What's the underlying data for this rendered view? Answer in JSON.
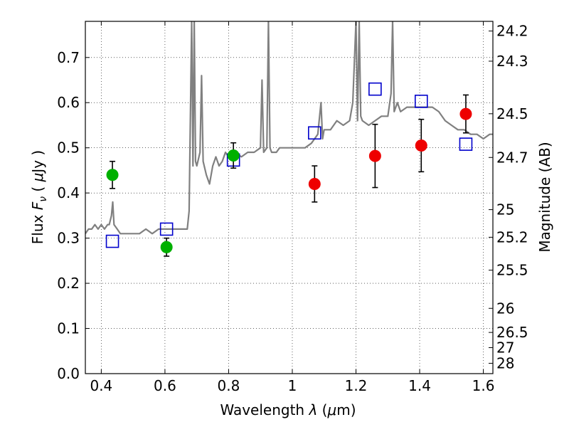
{
  "chart_data": {
    "type": "scatter",
    "xlabel": "Wavelength  λ (μm)",
    "ylabel": "Flux  F_ν  ( μJy )",
    "ylabel_parts": {
      "lead": "Flux  ",
      "var": "F",
      "sub": "ν",
      "mid": "  ( ",
      "unit": "μ",
      "unit_rest": "Jy )"
    },
    "xlabel_parts": {
      "lead": "Wavelength  ",
      "var": "λ",
      "mid": " (",
      "unit": "μ",
      "unit_rest": "m)"
    },
    "y2label": "Magnitude (AB)",
    "xlim": [
      0.35,
      1.63
    ],
    "ylim": [
      0.0,
      0.78
    ],
    "grid": true,
    "x_ticks": [
      {
        "value": 0.4,
        "label": "0.4"
      },
      {
        "value": 0.6,
        "label": "0.6"
      },
      {
        "value": 0.8,
        "label": "0.8"
      },
      {
        "value": 1.0,
        "label": "1"
      },
      {
        "value": 1.2,
        "label": "1.2"
      },
      {
        "value": 1.4,
        "label": "1.4"
      },
      {
        "value": 1.6,
        "label": "1.6"
      }
    ],
    "y_ticks": [
      {
        "value": 0.0,
        "label": "0.0"
      },
      {
        "value": 0.1,
        "label": "0.1"
      },
      {
        "value": 0.2,
        "label": "0.2"
      },
      {
        "value": 0.3,
        "label": "0.3"
      },
      {
        "value": 0.4,
        "label": "0.4"
      },
      {
        "value": 0.5,
        "label": "0.5"
      },
      {
        "value": 0.6,
        "label": "0.6"
      },
      {
        "value": 0.7,
        "label": "0.7"
      }
    ],
    "y2_ticks": [
      {
        "mag": 24.2,
        "label": "24.2"
      },
      {
        "mag": 24.3,
        "label": "24.3"
      },
      {
        "mag": 24.5,
        "label": "24.5"
      },
      {
        "mag": 24.7,
        "label": "24.7"
      },
      {
        "mag": 25.0,
        "label": "25"
      },
      {
        "mag": 25.2,
        "label": "25.2"
      },
      {
        "mag": 25.5,
        "label": "25.5"
      },
      {
        "mag": 26.0,
        "label": "26"
      },
      {
        "mag": 26.5,
        "label": "26.5"
      },
      {
        "mag": 27.0,
        "label": "27"
      },
      {
        "mag": 28.0,
        "label": "28"
      }
    ],
    "series": [
      {
        "kind": "spectrum",
        "color": "#808080",
        "x": [
          0.35,
          0.36,
          0.37,
          0.38,
          0.39,
          0.4,
          0.41,
          0.42,
          0.425,
          0.432,
          0.436,
          0.44,
          0.45,
          0.46,
          0.48,
          0.5,
          0.52,
          0.54,
          0.56,
          0.58,
          0.6,
          0.62,
          0.64,
          0.66,
          0.67,
          0.676,
          0.684,
          0.688,
          0.692,
          0.696,
          0.7,
          0.71,
          0.715,
          0.72,
          0.73,
          0.74,
          0.75,
          0.76,
          0.77,
          0.78,
          0.79,
          0.8,
          0.81,
          0.82,
          0.84,
          0.86,
          0.88,
          0.9,
          0.905,
          0.91,
          0.92,
          0.925,
          0.93,
          0.935,
          0.94,
          0.95,
          0.96,
          0.98,
          1.0,
          1.02,
          1.04,
          1.06,
          1.08,
          1.09,
          1.095,
          1.1,
          1.12,
          1.14,
          1.16,
          1.18,
          1.19,
          1.2,
          1.205,
          1.21,
          1.215,
          1.22,
          1.24,
          1.26,
          1.28,
          1.3,
          1.31,
          1.315,
          1.32,
          1.33,
          1.34,
          1.36,
          1.38,
          1.4,
          1.42,
          1.44,
          1.46,
          1.48,
          1.5,
          1.52,
          1.54,
          1.56,
          1.58,
          1.6,
          1.62,
          1.63
        ],
        "y": [
          0.31,
          0.32,
          0.32,
          0.33,
          0.32,
          0.33,
          0.32,
          0.33,
          0.33,
          0.35,
          0.38,
          0.33,
          0.32,
          0.31,
          0.31,
          0.31,
          0.31,
          0.32,
          0.31,
          0.32,
          0.32,
          0.32,
          0.32,
          0.32,
          0.32,
          0.36,
          0.78,
          0.46,
          0.78,
          0.47,
          0.46,
          0.49,
          0.66,
          0.47,
          0.44,
          0.42,
          0.46,
          0.48,
          0.46,
          0.47,
          0.49,
          0.48,
          0.49,
          0.49,
          0.48,
          0.49,
          0.49,
          0.5,
          0.65,
          0.49,
          0.5,
          0.78,
          0.5,
          0.49,
          0.49,
          0.49,
          0.5,
          0.5,
          0.5,
          0.5,
          0.5,
          0.51,
          0.53,
          0.6,
          0.52,
          0.54,
          0.54,
          0.56,
          0.55,
          0.56,
          0.6,
          0.78,
          0.56,
          0.78,
          0.57,
          0.56,
          0.55,
          0.56,
          0.57,
          0.57,
          0.62,
          0.78,
          0.58,
          0.6,
          0.58,
          0.59,
          0.59,
          0.59,
          0.59,
          0.59,
          0.58,
          0.56,
          0.55,
          0.54,
          0.54,
          0.53,
          0.53,
          0.52,
          0.53,
          0.53
        ]
      },
      {
        "kind": "model-squares",
        "color": "#0000cc",
        "points": [
          [
            0.435,
            0.293
          ],
          [
            0.605,
            0.32
          ],
          [
            0.815,
            0.473
          ],
          [
            1.07,
            0.533
          ],
          [
            1.26,
            0.63
          ],
          [
            1.405,
            0.603
          ],
          [
            1.545,
            0.508
          ]
        ]
      },
      {
        "kind": "optical-points",
        "color": "#00b000",
        "points": [
          {
            "x": 0.435,
            "y": 0.44,
            "err": 0.03
          },
          {
            "x": 0.605,
            "y": 0.28,
            "err": 0.02
          },
          {
            "x": 0.815,
            "y": 0.483,
            "err": 0.028
          }
        ]
      },
      {
        "kind": "nir-points",
        "color": "#ee0000",
        "points": [
          {
            "x": 1.07,
            "y": 0.42,
            "err": 0.04
          },
          {
            "x": 1.26,
            "y": 0.482,
            "err": 0.07
          },
          {
            "x": 1.405,
            "y": 0.505,
            "err": 0.058
          },
          {
            "x": 1.545,
            "y": 0.575,
            "err": 0.042
          }
        ]
      }
    ]
  }
}
